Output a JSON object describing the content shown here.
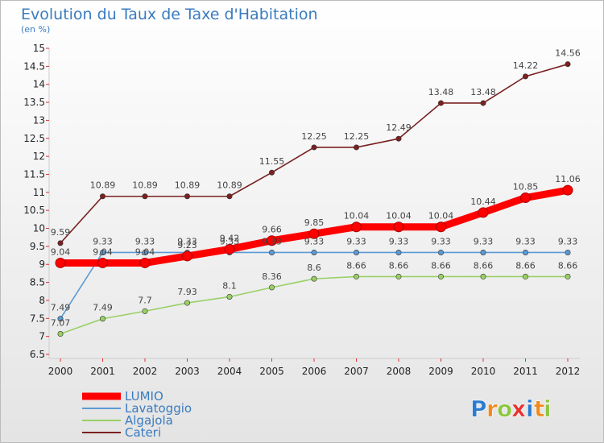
{
  "chart_data": {
    "type": "line",
    "title": "Evolution du Taux de Taxe d'Habitation",
    "subtitle": "(en %)",
    "x": [
      "2000",
      "2001",
      "2002",
      "2003",
      "2004",
      "2005",
      "2006",
      "2007",
      "2008",
      "2009",
      "2010",
      "2011",
      "2012"
    ],
    "ylim": [
      6.5,
      15
    ],
    "yticks": [
      "6.5",
      "7",
      "7.5",
      "8",
      "8.5",
      "9",
      "9.5",
      "10",
      "10.5",
      "11",
      "11.5",
      "12",
      "12.5",
      "13",
      "13.5",
      "14",
      "14.5",
      "15"
    ],
    "grid": false,
    "legend_position": "bottom-left",
    "series": [
      {
        "name": "LUMIO",
        "color": "#ff0000",
        "values": [
          9.04,
          9.04,
          9.04,
          9.23,
          9.42,
          9.66,
          9.85,
          10.04,
          10.04,
          10.04,
          10.44,
          10.85,
          11.06
        ],
        "labels": [
          "9.04",
          "9.04",
          "9.04",
          "9.23",
          "9.42",
          "9.66",
          "9.85",
          "10.04",
          "10.04",
          "10.04",
          "10.44",
          "10.85",
          "11.06"
        ]
      },
      {
        "name": "Lavatoggio",
        "color": "#5b9bd5",
        "values": [
          7.49,
          9.33,
          9.33,
          9.33,
          9.33,
          9.33,
          9.33,
          9.33,
          9.33,
          9.33,
          9.33,
          9.33,
          9.33
        ],
        "labels": [
          "7.49",
          "9.33",
          "9.33",
          "9.33",
          "9.33",
          "9.33",
          "9.33",
          "9.33",
          "9.33",
          "9.33",
          "9.33",
          "9.33",
          "9.33"
        ]
      },
      {
        "name": "Algajola",
        "color": "#99d066",
        "values": [
          7.07,
          7.49,
          7.7,
          7.93,
          8.1,
          8.36,
          8.6,
          8.66,
          8.66,
          8.66,
          8.66,
          8.66,
          8.66
        ],
        "labels": [
          "7.07",
          "7.49",
          "7.7",
          "7.93",
          "8.1",
          "8.36",
          "8.6",
          "8.66",
          "8.66",
          "8.66",
          "8.66",
          "8.66",
          "8.66"
        ]
      },
      {
        "name": "Cateri",
        "color": "#7b2020",
        "values": [
          9.59,
          10.89,
          10.89,
          10.89,
          10.89,
          11.55,
          12.25,
          12.25,
          12.49,
          13.48,
          13.48,
          14.22,
          14.56
        ],
        "labels": [
          "9.59",
          "10.89",
          "10.89",
          "10.89",
          "10.89",
          "11.55",
          "12.25",
          "12.25",
          "12.49",
          "13.48",
          "13.48",
          "14.22",
          "14.56"
        ]
      }
    ]
  },
  "brand": {
    "logo_letters": [
      "P",
      "r",
      "o",
      "x",
      "i",
      "t",
      "i"
    ],
    "logo_colors": [
      "#2b7bd0",
      "#f08a1c",
      "#8cc63f",
      "#e8312f",
      "#2b7bd0",
      "#f08a1c",
      "#8cc63f"
    ]
  }
}
